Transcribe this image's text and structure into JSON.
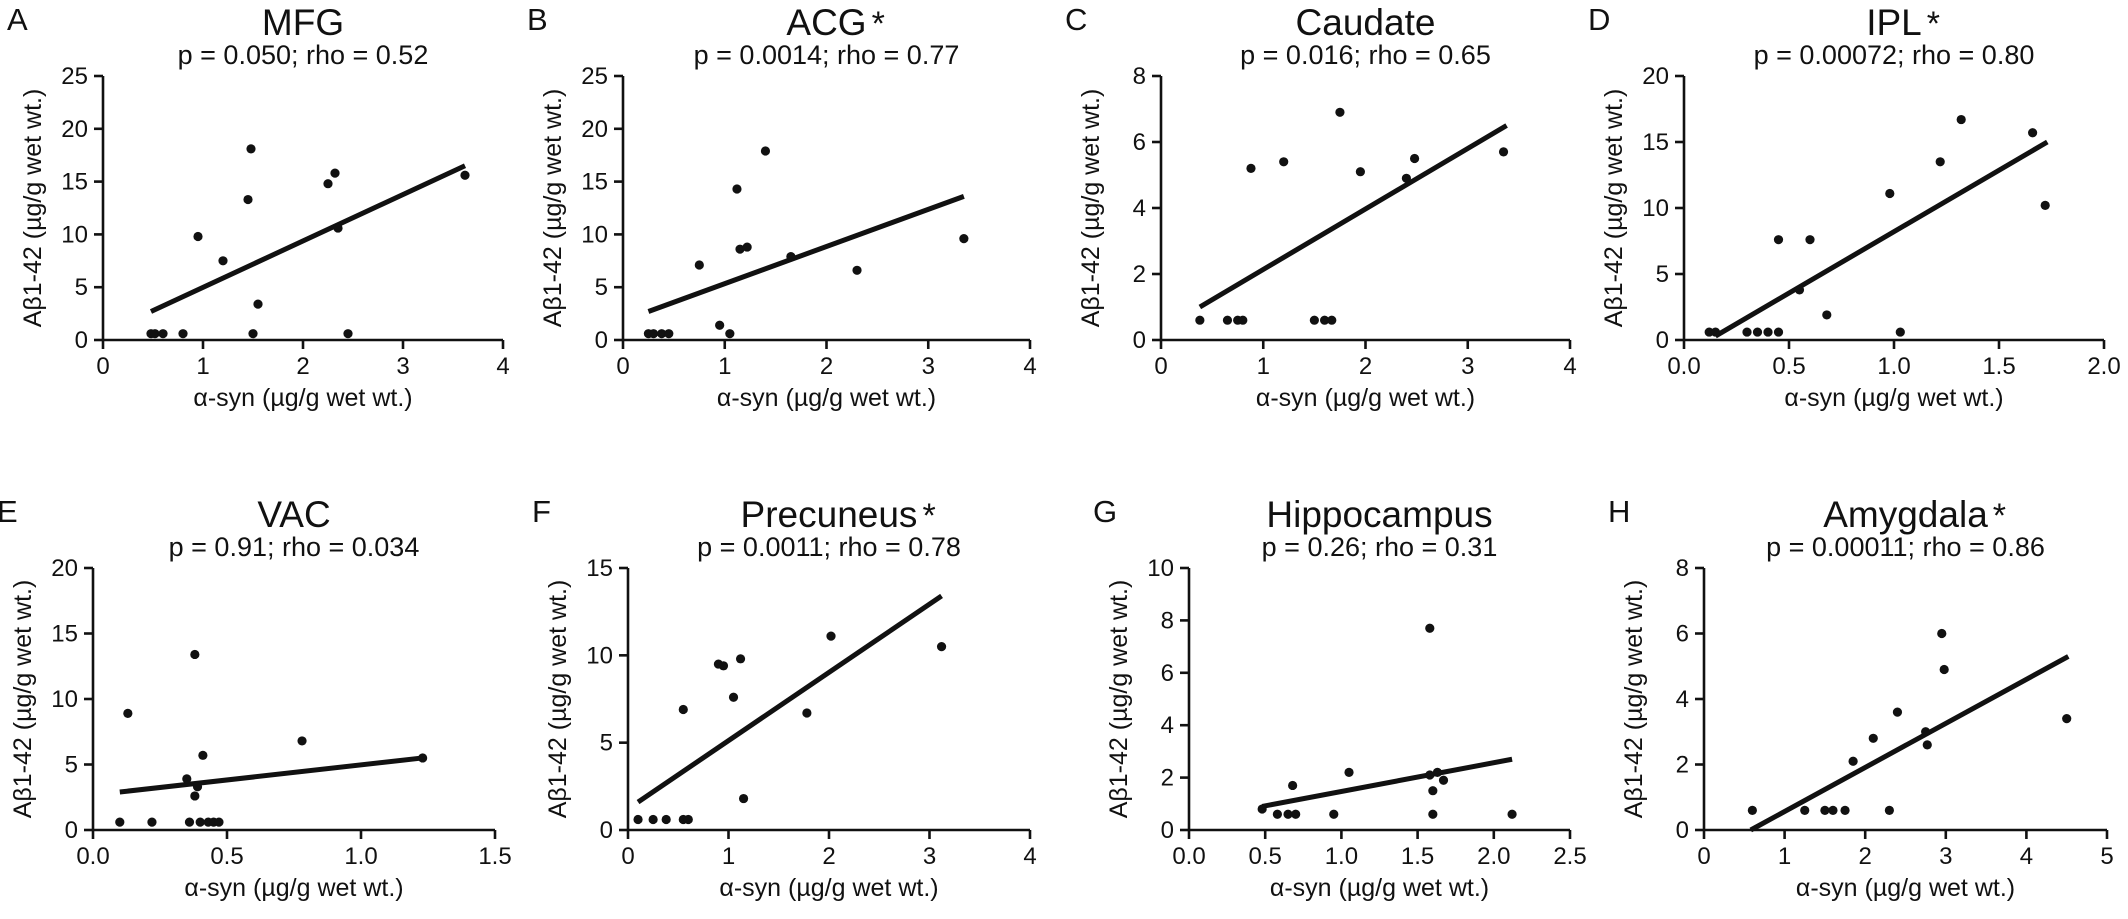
{
  "chart_data": [
    {
      "type": "scatter",
      "panel": "A",
      "title": "MFG",
      "significant": false,
      "subtitle": "p = 0.050; rho = 0.52",
      "xlabel": "α-syn (µg/g wet wt.)",
      "ylabel": "Aβ1-42 (µg/g wet wt.)",
      "xlim": [
        0,
        4
      ],
      "ylim": [
        0,
        25
      ],
      "xticks": [
        "0",
        "1",
        "2",
        "3",
        "4"
      ],
      "yticks": [
        "0",
        "5",
        "10",
        "15",
        "20",
        "25"
      ],
      "points": [
        [
          0.48,
          0.6
        ],
        [
          0.52,
          0.6
        ],
        [
          0.6,
          0.6
        ],
        [
          0.8,
          0.6
        ],
        [
          0.95,
          9.8
        ],
        [
          1.2,
          7.5
        ],
        [
          1.45,
          13.3
        ],
        [
          1.48,
          18.1
        ],
        [
          1.5,
          0.6
        ],
        [
          1.55,
          3.4
        ],
        [
          2.25,
          14.8
        ],
        [
          2.32,
          15.8
        ],
        [
          2.35,
          10.6
        ],
        [
          2.45,
          0.6
        ],
        [
          3.62,
          15.6
        ]
      ],
      "fit": [
        [
          0.48,
          2.7
        ],
        [
          3.62,
          16.5
        ]
      ]
    },
    {
      "type": "scatter",
      "panel": "B",
      "title": "ACG",
      "significant": true,
      "subtitle": "p = 0.0014; rho = 0.77",
      "xlabel": "α-syn (µg/g wet wt.)",
      "ylabel": "Aβ1-42 (µg/g wet wt.)",
      "xlim": [
        0,
        4
      ],
      "ylim": [
        0,
        25
      ],
      "xticks": [
        "0",
        "1",
        "2",
        "3",
        "4"
      ],
      "yticks": [
        "0",
        "5",
        "10",
        "15",
        "20",
        "25"
      ],
      "points": [
        [
          0.25,
          0.6
        ],
        [
          0.3,
          0.6
        ],
        [
          0.38,
          0.6
        ],
        [
          0.45,
          0.6
        ],
        [
          0.75,
          7.1
        ],
        [
          0.95,
          1.4
        ],
        [
          1.05,
          0.6
        ],
        [
          1.12,
          14.3
        ],
        [
          1.15,
          8.6
        ],
        [
          1.22,
          8.8
        ],
        [
          1.4,
          17.9
        ],
        [
          1.65,
          7.9
        ],
        [
          2.3,
          6.6
        ],
        [
          3.35,
          9.6
        ]
      ],
      "fit": [
        [
          0.25,
          2.7
        ],
        [
          3.35,
          13.6
        ]
      ]
    },
    {
      "type": "scatter",
      "panel": "C",
      "title": "Caudate",
      "significant": false,
      "subtitle": "p = 0.016; rho = 0.65",
      "xlabel": "α-syn (µg/g wet wt.)",
      "ylabel": "Aβ1-42 (µg/g wet wt.)",
      "xlim": [
        0,
        4
      ],
      "ylim": [
        0,
        8
      ],
      "xticks": [
        "0",
        "1",
        "2",
        "3",
        "4"
      ],
      "yticks": [
        "0",
        "2",
        "4",
        "6",
        "8"
      ],
      "points": [
        [
          0.38,
          0.6
        ],
        [
          0.65,
          0.6
        ],
        [
          0.75,
          0.6
        ],
        [
          0.8,
          0.6
        ],
        [
          0.88,
          5.2
        ],
        [
          1.2,
          5.4
        ],
        [
          1.5,
          0.6
        ],
        [
          1.6,
          0.6
        ],
        [
          1.67,
          0.6
        ],
        [
          1.75,
          6.9
        ],
        [
          1.95,
          5.1
        ],
        [
          2.4,
          4.9
        ],
        [
          2.48,
          5.5
        ],
        [
          3.35,
          5.7
        ]
      ],
      "fit": [
        [
          0.38,
          1.0
        ],
        [
          3.38,
          6.5
        ]
      ]
    },
    {
      "type": "scatter",
      "panel": "D",
      "title": "IPL",
      "significant": true,
      "subtitle": "p = 0.00072; rho = 0.80",
      "xlabel": "α-syn (µg/g wet wt.)",
      "ylabel": "Aβ1-42 (µg/g wet wt.)",
      "xlim": [
        0,
        2
      ],
      "ylim": [
        0,
        20
      ],
      "xticks": [
        "0.0",
        "0.5",
        "1.0",
        "1.5",
        "2.0"
      ],
      "yticks": [
        "0",
        "5",
        "10",
        "15",
        "20"
      ],
      "points": [
        [
          0.12,
          0.6
        ],
        [
          0.15,
          0.6
        ],
        [
          0.3,
          0.6
        ],
        [
          0.35,
          0.6
        ],
        [
          0.4,
          0.6
        ],
        [
          0.45,
          0.6
        ],
        [
          0.45,
          7.6
        ],
        [
          0.55,
          3.8
        ],
        [
          0.6,
          7.6
        ],
        [
          0.68,
          1.9
        ],
        [
          0.98,
          11.1
        ],
        [
          1.03,
          0.6
        ],
        [
          1.22,
          13.5
        ],
        [
          1.32,
          16.7
        ],
        [
          1.66,
          15.7
        ],
        [
          1.72,
          10.2
        ]
      ],
      "fit": [
        [
          0.15,
          0.3
        ],
        [
          1.73,
          15.0
        ]
      ]
    },
    {
      "type": "scatter",
      "panel": "E",
      "title": "VAC",
      "significant": false,
      "subtitle": "p = 0.91; rho = 0.034",
      "xlabel": "α-syn (µg/g wet wt.)",
      "ylabel": "Aβ1-42 (µg/g wet wt.)",
      "xlim": [
        0,
        1.5
      ],
      "ylim": [
        0,
        20
      ],
      "xticks": [
        "0.0",
        "0.5",
        "1.0",
        "1.5"
      ],
      "yticks": [
        "0",
        "5",
        "10",
        "15",
        "20"
      ],
      "points": [
        [
          0.1,
          0.6
        ],
        [
          0.13,
          8.9
        ],
        [
          0.22,
          0.6
        ],
        [
          0.35,
          3.9
        ],
        [
          0.36,
          0.6
        ],
        [
          0.38,
          13.4
        ],
        [
          0.38,
          2.6
        ],
        [
          0.39,
          3.3
        ],
        [
          0.4,
          0.6
        ],
        [
          0.41,
          5.7
        ],
        [
          0.43,
          0.6
        ],
        [
          0.45,
          0.6
        ],
        [
          0.47,
          0.6
        ],
        [
          0.78,
          6.8
        ],
        [
          1.23,
          5.5
        ]
      ],
      "fit": [
        [
          0.1,
          2.9
        ],
        [
          1.23,
          5.5
        ]
      ]
    },
    {
      "type": "scatter",
      "panel": "F",
      "title": "Precuneus",
      "significant": true,
      "subtitle": "p = 0.0011; rho = 0.78",
      "xlabel": "α-syn (µg/g wet wt.)",
      "ylabel": "Aβ1-42 (µg/g wet wt.)",
      "xlim": [
        0,
        4
      ],
      "ylim": [
        0,
        15
      ],
      "xticks": [
        "0",
        "1",
        "2",
        "3",
        "4"
      ],
      "yticks": [
        "0",
        "5",
        "10",
        "15"
      ],
      "points": [
        [
          0.1,
          0.6
        ],
        [
          0.25,
          0.6
        ],
        [
          0.38,
          0.6
        ],
        [
          0.55,
          0.6
        ],
        [
          0.6,
          0.6
        ],
        [
          0.55,
          6.9
        ],
        [
          0.9,
          9.5
        ],
        [
          0.95,
          9.4
        ],
        [
          1.05,
          7.6
        ],
        [
          1.12,
          9.8
        ],
        [
          1.15,
          1.8
        ],
        [
          1.78,
          6.7
        ],
        [
          2.02,
          11.1
        ],
        [
          3.12,
          10.5
        ]
      ],
      "fit": [
        [
          0.1,
          1.6
        ],
        [
          3.12,
          13.4
        ]
      ]
    },
    {
      "type": "scatter",
      "panel": "G",
      "title": "Hippocampus",
      "significant": false,
      "subtitle": "p = 0.26; rho = 0.31",
      "xlabel": "α-syn (µg/g wet wt.)",
      "ylabel": "Aβ1-42 (µg/g wet wt.)",
      "xlim": [
        0,
        2.5
      ],
      "ylim": [
        0,
        10
      ],
      "xticks": [
        "0.0",
        "0.5",
        "1.0",
        "1.5",
        "2.0",
        "2.5"
      ],
      "yticks": [
        "0",
        "2",
        "4",
        "6",
        "8",
        "10"
      ],
      "points": [
        [
          0.48,
          0.8
        ],
        [
          0.58,
          0.6
        ],
        [
          0.65,
          0.6
        ],
        [
          0.7,
          0.6
        ],
        [
          0.68,
          1.7
        ],
        [
          0.95,
          0.6
        ],
        [
          1.05,
          2.2
        ],
        [
          1.58,
          7.7
        ],
        [
          1.58,
          2.1
        ],
        [
          1.6,
          1.5
        ],
        [
          1.6,
          0.6
        ],
        [
          1.63,
          2.2
        ],
        [
          1.67,
          1.9
        ],
        [
          2.12,
          0.6
        ]
      ],
      "fit": [
        [
          0.48,
          0.9
        ],
        [
          2.12,
          2.7
        ]
      ]
    },
    {
      "type": "scatter",
      "panel": "H",
      "title": "Amygdala",
      "significant": true,
      "subtitle": "p = 0.00011; rho = 0.86",
      "xlabel": "α-syn (µg/g wet wt.)",
      "ylabel": "Aβ1-42 (µg/g wet wt.)",
      "xlim": [
        0,
        5
      ],
      "ylim": [
        0,
        8
      ],
      "xticks": [
        "0",
        "1",
        "2",
        "3",
        "4",
        "5"
      ],
      "yticks": [
        "0",
        "2",
        "4",
        "6",
        "8"
      ],
      "points": [
        [
          0.6,
          0.6
        ],
        [
          1.25,
          0.6
        ],
        [
          1.5,
          0.6
        ],
        [
          1.6,
          0.6
        ],
        [
          1.75,
          0.6
        ],
        [
          1.85,
          2.1
        ],
        [
          2.1,
          2.8
        ],
        [
          2.3,
          0.6
        ],
        [
          2.4,
          3.6
        ],
        [
          2.75,
          3.0
        ],
        [
          2.77,
          2.6
        ],
        [
          2.95,
          6.0
        ],
        [
          2.98,
          4.9
        ],
        [
          4.5,
          3.4
        ]
      ],
      "fit": [
        [
          0.58,
          0.0
        ],
        [
          4.52,
          5.3
        ]
      ]
    }
  ]
}
